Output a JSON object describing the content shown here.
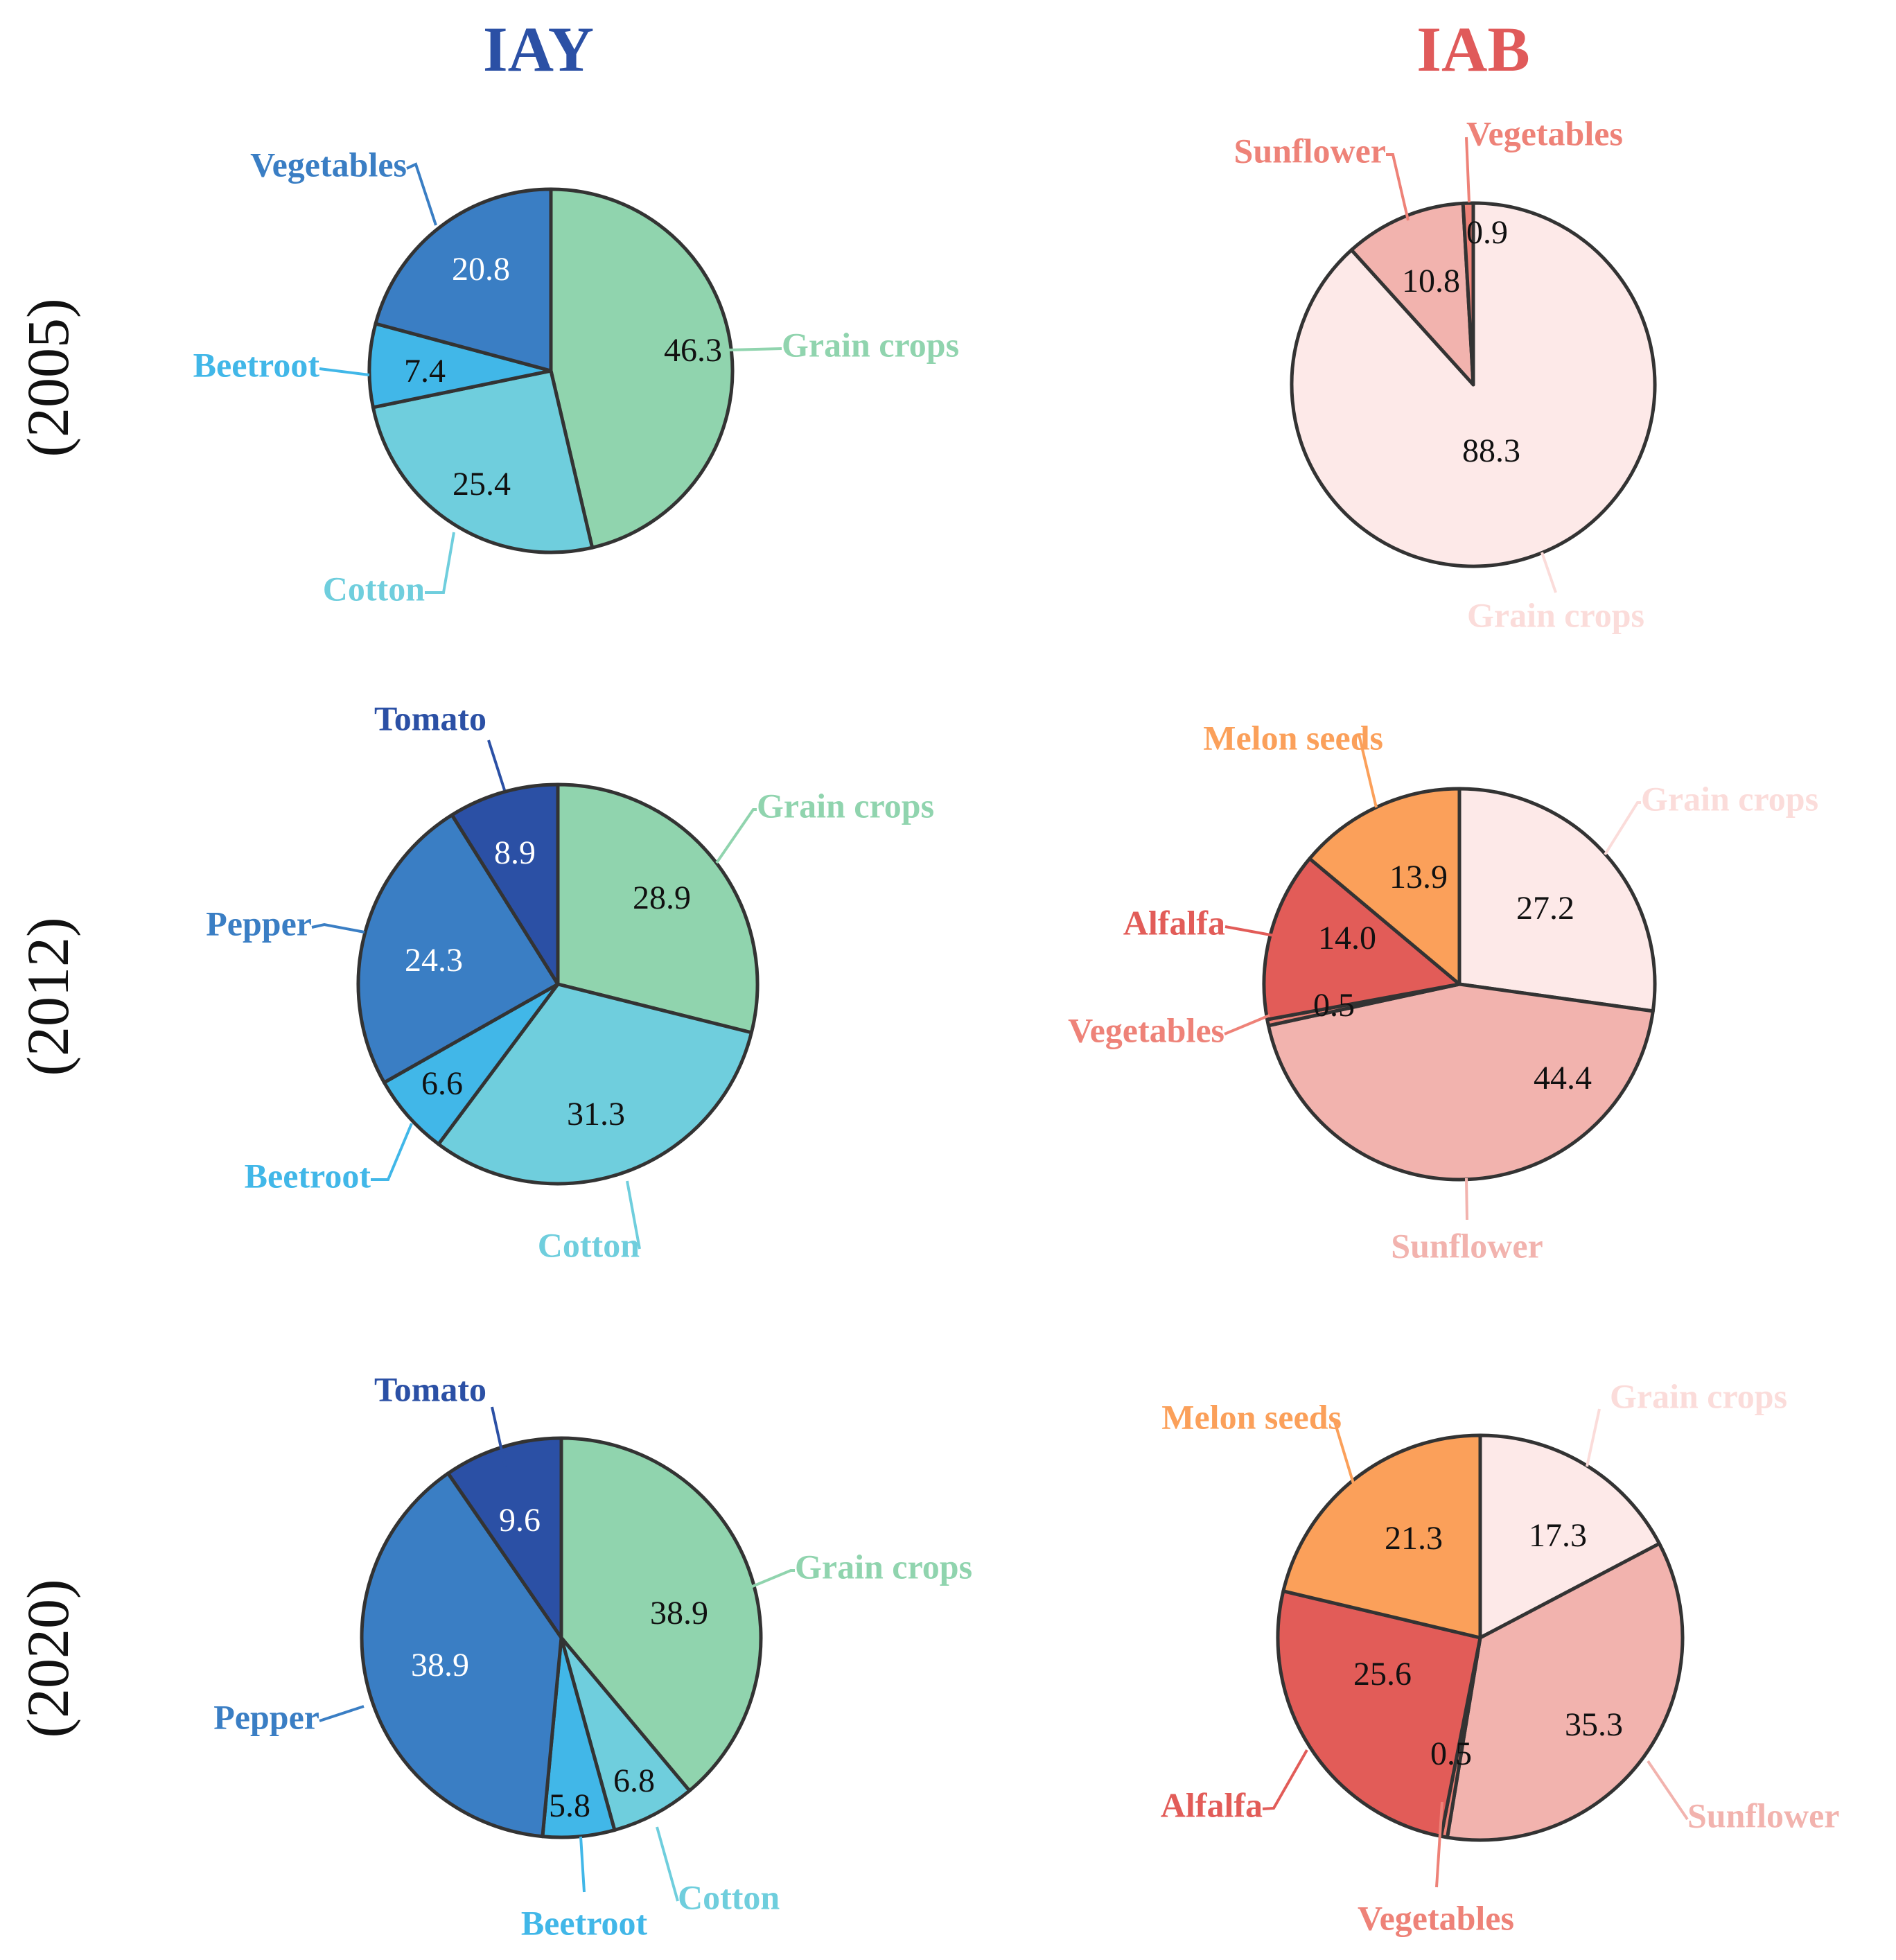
{
  "colors": {
    "iay_title": "#2B50A5",
    "iab_title": "#E05A5A",
    "Grain crops IAY": "#90D4AE",
    "Cotton": "#6FCEDD",
    "Beetroot": "#41B7E8",
    "Vegetables IAY": "#3A7EC4",
    "Pepper": "#3A7EC4",
    "Tomato": "#2B50A5",
    "Grain crops IAB": "#FDE9E8",
    "Sunflower": "#F2B3AE",
    "Vegetables IAB": "#EE8278",
    "Alfalfa": "#E25C58",
    "Melon seeds": "#FBA05A"
  },
  "chart_data": [
    {
      "type": "pie",
      "column": "IAY",
      "year": "(2005)",
      "units": "%",
      "slices": [
        {
          "label": "Grain crops",
          "value": 46.3,
          "color": "#90D4AE",
          "value_text": "46.3",
          "label_color": "#90D4AE",
          "value_color": "#111111"
        },
        {
          "label": "Cotton",
          "value": 25.4,
          "color": "#6FCEDD",
          "value_text": "25.4",
          "label_color": "#6FCEDD",
          "value_color": "#111111"
        },
        {
          "label": "Beetroot",
          "value": 7.4,
          "color": "#41B7E8",
          "value_text": "7.4",
          "label_color": "#41B7E8",
          "value_color": "#111111"
        },
        {
          "label": "Vegetables",
          "value": 20.8,
          "color": "#3A7EC4",
          "value_text": "20.8",
          "label_color": "#3A7EC4",
          "value_color": "#ffffff"
        }
      ]
    },
    {
      "type": "pie",
      "column": "IAB",
      "year": "(2005)",
      "units": "%",
      "slices": [
        {
          "label": "Grain crops",
          "value": 88.3,
          "color": "#FDE9E8",
          "value_text": "88.3",
          "label_color": "#FBDCDA",
          "value_color": "#111111"
        },
        {
          "label": "Sunflower",
          "value": 10.8,
          "color": "#F2B3AE",
          "value_text": "10.8",
          "label_color": "#EE8278",
          "value_color": "#111111"
        },
        {
          "label": "Vegetables",
          "value": 0.9,
          "color": "#EE8278",
          "value_text": "0.9",
          "label_color": "#EE8278",
          "value_color": "#111111"
        }
      ]
    },
    {
      "type": "pie",
      "column": "IAY",
      "year": "(2012)",
      "units": "%",
      "slices": [
        {
          "label": "Grain crops",
          "value": 28.9,
          "color": "#90D4AE",
          "value_text": "28.9",
          "label_color": "#90D4AE",
          "value_color": "#111111"
        },
        {
          "label": "Cotton",
          "value": 31.3,
          "color": "#6FCEDD",
          "value_text": "31.3",
          "label_color": "#6FCEDD",
          "value_color": "#111111"
        },
        {
          "label": "Beetroot",
          "value": 6.6,
          "color": "#41B7E8",
          "value_text": "6.6",
          "label_color": "#41B7E8",
          "value_color": "#111111"
        },
        {
          "label": "Pepper",
          "value": 24.3,
          "color": "#3A7EC4",
          "value_text": "24.3",
          "label_color": "#3A7EC4",
          "value_color": "#ffffff"
        },
        {
          "label": "Tomato",
          "value": 8.9,
          "color": "#2B50A5",
          "value_text": "8.9",
          "label_color": "#2B50A5",
          "value_color": "#ffffff"
        }
      ]
    },
    {
      "type": "pie",
      "column": "IAB",
      "year": "(2012)",
      "units": "%",
      "slices": [
        {
          "label": "Grain crops",
          "value": 27.2,
          "color": "#FDE9E8",
          "value_text": "27.2",
          "label_color": "#FBDCDA",
          "value_color": "#111111"
        },
        {
          "label": "Sunflower",
          "value": 44.4,
          "color": "#F2B3AE",
          "value_text": "44.4",
          "label_color": "#F2B3AE",
          "value_color": "#111111"
        },
        {
          "label": "Vegetables",
          "value": 0.5,
          "color": "#EE8278",
          "value_text": "0.5",
          "label_color": "#EE8278",
          "value_color": "#111111"
        },
        {
          "label": "Alfalfa",
          "value": 14.0,
          "color": "#E25C58",
          "value_text": "14.0",
          "label_color": "#E25C58",
          "value_color": "#111111"
        },
        {
          "label": "Melon seeds",
          "value": 13.9,
          "color": "#FBA05A",
          "value_text": "13.9",
          "label_color": "#FBA05A",
          "value_color": "#111111"
        }
      ]
    },
    {
      "type": "pie",
      "column": "IAY",
      "year": "(2020)",
      "units": "%",
      "slices": [
        {
          "label": "Grain crops",
          "value": 38.9,
          "color": "#90D4AE",
          "value_text": "38.9",
          "label_color": "#90D4AE",
          "value_color": "#111111"
        },
        {
          "label": "Cotton",
          "value": 6.8,
          "color": "#6FCEDD",
          "value_text": "6.8",
          "label_color": "#6FCEDD",
          "value_color": "#111111"
        },
        {
          "label": "Beetroot",
          "value": 5.8,
          "color": "#41B7E8",
          "value_text": "5.8",
          "label_color": "#41B7E8",
          "value_color": "#111111"
        },
        {
          "label": "Pepper",
          "value": 38.9,
          "color": "#3A7EC4",
          "value_text": "38.9",
          "label_color": "#3A7EC4",
          "value_color": "#ffffff"
        },
        {
          "label": "Tomato",
          "value": 9.6,
          "color": "#2B50A5",
          "value_text": "9.6",
          "label_color": "#2B50A5",
          "value_color": "#ffffff"
        }
      ]
    },
    {
      "type": "pie",
      "column": "IAB",
      "year": "(2020)",
      "units": "%",
      "slices": [
        {
          "label": "Grain crops",
          "value": 17.3,
          "color": "#FDE9E8",
          "value_text": "17.3",
          "label_color": "#FBDCDA",
          "value_color": "#111111"
        },
        {
          "label": "Sunflower",
          "value": 35.3,
          "color": "#F2B3AE",
          "value_text": "35.3",
          "label_color": "#F2B3AE",
          "value_color": "#111111"
        },
        {
          "label": "Vegetables",
          "value": 0.5,
          "color": "#EE8278",
          "value_text": "0.5",
          "label_color": "#EE8278",
          "value_color": "#111111"
        },
        {
          "label": "Alfalfa",
          "value": 25.6,
          "color": "#E25C58",
          "value_text": "25.6",
          "label_color": "#E25C58",
          "value_color": "#111111"
        },
        {
          "label": "Melon seeds",
          "value": 21.3,
          "color": "#FBA05A",
          "value_text": "21.3",
          "label_color": "#FBA05A",
          "value_color": "#111111"
        }
      ]
    }
  ],
  "column_titles": [
    "IAY",
    "IAB"
  ],
  "row_labels": [
    "(2005)",
    "(2012)",
    "(2020)"
  ]
}
